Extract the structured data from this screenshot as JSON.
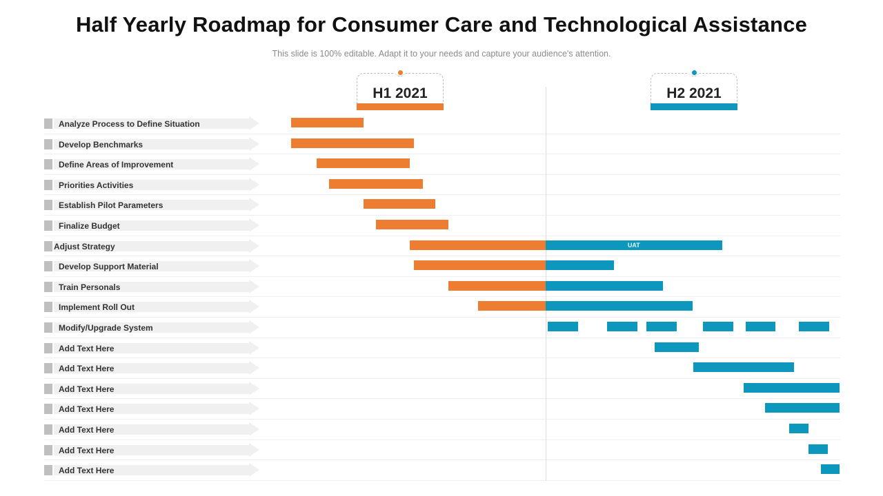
{
  "title": "Half Yearly Roadmap for Consumer Care and Technological Assistance",
  "subtitle": "This slide is 100% editable. Adapt it to your needs and capture your audience's attention.",
  "colors": {
    "h1": "#ED7D31",
    "h2": "#0E97BC"
  },
  "chart_data": {
    "type": "gantt",
    "title": "Half Yearly Roadmap for Consumer Care and Technological Assistance",
    "x_unit": "months from start of 2021",
    "x_range": [
      0,
      12
    ],
    "periods": [
      {
        "label": "H1 2021",
        "range": [
          0,
          6
        ],
        "color": "#ED7D31"
      },
      {
        "label": "H2 2021",
        "range": [
          6,
          12
        ],
        "color": "#0E97BC"
      }
    ],
    "tasks": [
      {
        "name": "Analyze  Process to Define  Situation",
        "segments": [
          {
            "period": "H1",
            "start": 0.0,
            "end": 1.7
          }
        ]
      },
      {
        "name": "Develop  Benchmarks",
        "segments": [
          {
            "period": "H1",
            "start": 0.0,
            "end": 2.9
          }
        ]
      },
      {
        "name": "Define Areas of Improvement",
        "segments": [
          {
            "period": "H1",
            "start": 0.6,
            "end": 2.8
          }
        ]
      },
      {
        "name": "Priorities Activities",
        "segments": [
          {
            "period": "H1",
            "start": 0.9,
            "end": 3.1
          }
        ]
      },
      {
        "name": "Establish  Pilot Parameters",
        "segments": [
          {
            "period": "H1",
            "start": 1.7,
            "end": 3.4
          }
        ]
      },
      {
        "name": "Finalize  Budget",
        "segments": [
          {
            "period": "H1",
            "start": 2.0,
            "end": 3.7
          }
        ]
      },
      {
        "name": "Adjust  Strategy",
        "segments": [
          {
            "period": "H1",
            "start": 2.8,
            "end": 6.0
          },
          {
            "period": "H2",
            "start": 6.0,
            "end": 9.6,
            "label": "UAT"
          }
        ]
      },
      {
        "name": "Develop  Support Material",
        "segments": [
          {
            "period": "H1",
            "start": 2.9,
            "end": 6.0
          },
          {
            "period": "H2",
            "start": 6.0,
            "end": 7.4
          }
        ]
      },
      {
        "name": "Train  Personals",
        "segments": [
          {
            "period": "H1",
            "start": 3.7,
            "end": 6.0
          },
          {
            "period": "H2",
            "start": 6.0,
            "end": 8.4
          }
        ]
      },
      {
        "name": "Implement Roll  Out",
        "segments": [
          {
            "period": "H1",
            "start": 4.4,
            "end": 6.0
          },
          {
            "period": "H2",
            "start": 6.0,
            "end": 9.0
          }
        ]
      },
      {
        "name": "Modify/Upgrade  System",
        "segments": [
          {
            "period": "H2",
            "start": 6.04,
            "end": 6.66
          },
          {
            "period": "H2",
            "start": 7.25,
            "end": 7.87
          },
          {
            "period": "H2",
            "start": 8.06,
            "end": 8.68
          },
          {
            "period": "H2",
            "start": 9.21,
            "end": 9.83
          },
          {
            "period": "H2",
            "start": 10.08,
            "end": 10.69
          },
          {
            "period": "H2",
            "start": 11.17,
            "end": 11.79
          }
        ]
      },
      {
        "name": "Add  Text Here",
        "segments": [
          {
            "period": "H2",
            "start": 8.23,
            "end": 9.12
          }
        ]
      },
      {
        "name": "Add  Text Here",
        "segments": [
          {
            "period": "H2",
            "start": 9.02,
            "end": 11.07
          }
        ]
      },
      {
        "name": "Add  Text Here",
        "segments": [
          {
            "period": "H2",
            "start": 10.04,
            "end": 12.0
          }
        ]
      },
      {
        "name": "Add  Text Here",
        "segments": [
          {
            "period": "H2",
            "start": 10.48,
            "end": 12.0
          }
        ]
      },
      {
        "name": "Add  Text Here",
        "segments": [
          {
            "period": "H2",
            "start": 10.97,
            "end": 11.37
          }
        ]
      },
      {
        "name": "Add  Text Here",
        "segments": [
          {
            "period": "H2",
            "start": 11.37,
            "end": 11.76
          }
        ]
      },
      {
        "name": "Add  Text Here",
        "segments": [
          {
            "period": "H2",
            "start": 11.62,
            "end": 12.0
          }
        ]
      }
    ]
  }
}
